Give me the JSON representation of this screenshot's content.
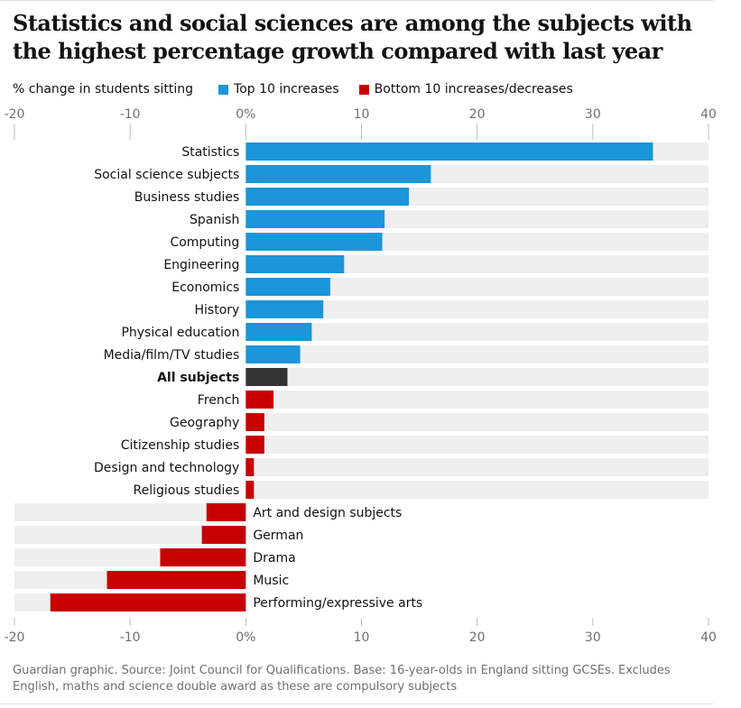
{
  "title": "Statistics and social sciences are among the subjects with the highest percentage growth compared with last year",
  "source": "Guardian graphic. Source: Joint Council for Qualifications. Base: 16-year-olds in England sitting GCSEs. Excludes English, maths and science double award as these are compulsory subjects",
  "colors": {
    "increase": "#1a96d9",
    "decrease": "#c70000",
    "all": "#333333",
    "track": "#efefef",
    "axis": "#707070",
    "text": "#121212"
  },
  "chart_data": {
    "type": "bar",
    "orientation": "horizontal",
    "title": "Statistics and social sciences are among the subjects with the highest percentage growth compared with last year",
    "xlabel": "% change in students sitting",
    "ylabel": "",
    "xlim": [
      -20,
      40
    ],
    "ticks": [
      -20,
      -10,
      0,
      10,
      20,
      30,
      40
    ],
    "tick_labels": [
      "-20",
      "-10",
      "0%",
      "10",
      "20",
      "30",
      "40"
    ],
    "grid": false,
    "legend_position": "top",
    "legend": [
      {
        "label": "Top 10 increases",
        "group": "top"
      },
      {
        "label": "Bottom 10 increases/decreases",
        "group": "bottom"
      }
    ],
    "categories": [
      "Statistics",
      "Social science subjects",
      "Business studies",
      "Spanish",
      "Computing",
      "Engineering",
      "Economics",
      "History",
      "Physical education",
      "Media/film/TV studies",
      "All subjects",
      "French",
      "Geography",
      "Citizenship studies",
      "Design and technology",
      "Religious studies",
      "Art and design subjects",
      "German",
      "Drama",
      "Music",
      "Performing/expressive arts"
    ],
    "values": [
      35.2,
      16.0,
      14.1,
      12.0,
      11.8,
      8.5,
      7.3,
      6.7,
      5.7,
      4.7,
      3.6,
      2.4,
      1.6,
      1.6,
      0.7,
      0.7,
      -3.4,
      -3.8,
      -7.4,
      -12.0,
      -16.9
    ],
    "groups": [
      "top",
      "top",
      "top",
      "top",
      "top",
      "top",
      "top",
      "top",
      "top",
      "top",
      "all",
      "bottom",
      "bottom",
      "bottom",
      "bottom",
      "bottom",
      "bottom",
      "bottom",
      "bottom",
      "bottom",
      "bottom"
    ]
  }
}
